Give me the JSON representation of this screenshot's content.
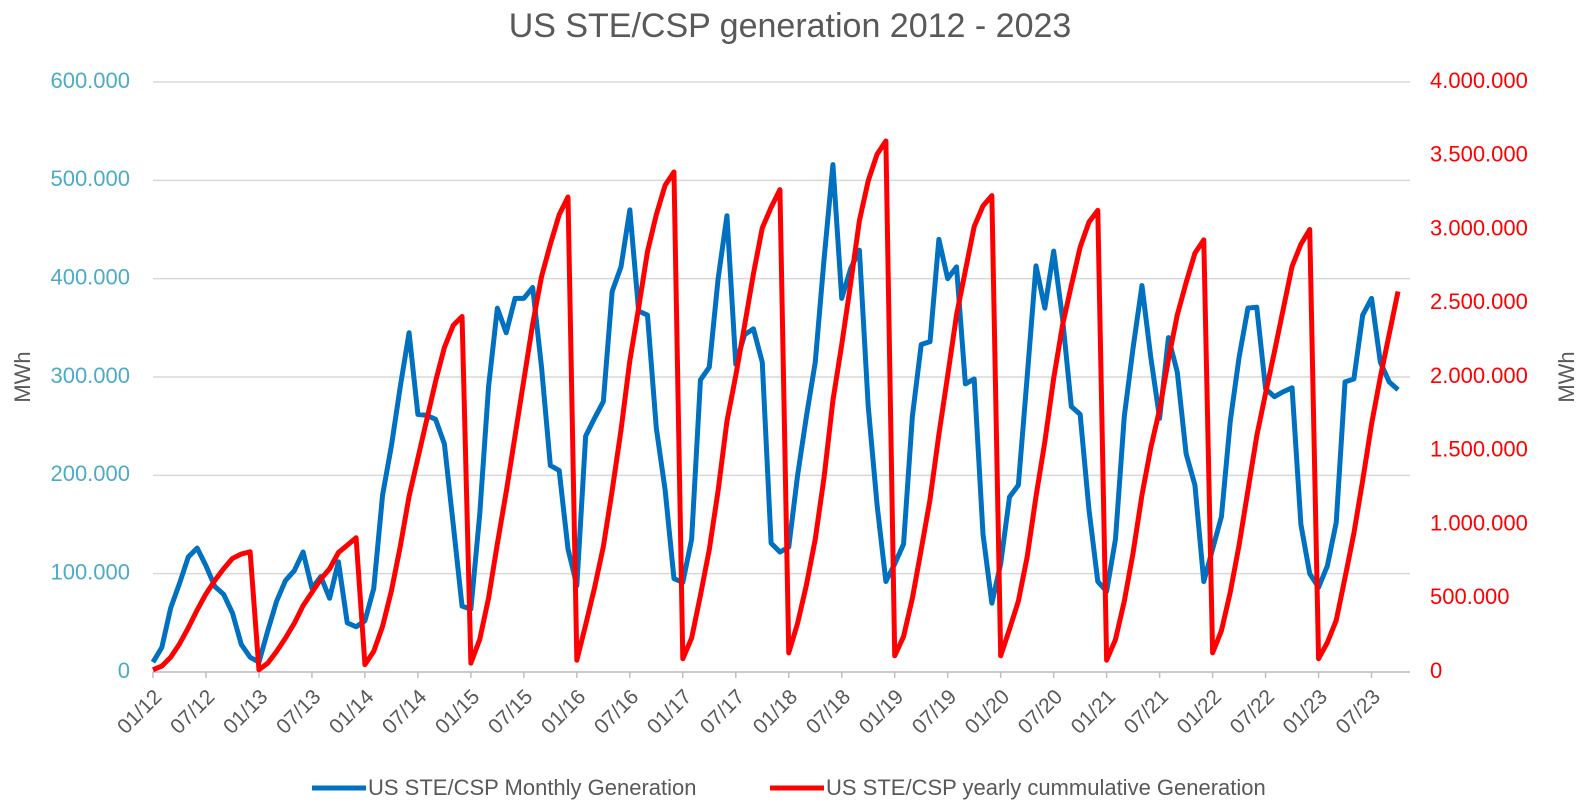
{
  "chart_data": {
    "type": "line",
    "title": "US STE/CSP generation 2012 - 2023",
    "y_label": "MWh",
    "y2_label": "MWh",
    "categories": [
      "01/12",
      null,
      null,
      null,
      null,
      null,
      "07/12",
      null,
      null,
      null,
      null,
      null,
      "01/13",
      null,
      null,
      null,
      null,
      null,
      "07/13",
      null,
      null,
      null,
      null,
      null,
      "01/14",
      null,
      null,
      null,
      null,
      null,
      "07/14",
      null,
      null,
      null,
      null,
      null,
      "01/15",
      null,
      null,
      null,
      null,
      null,
      "07/15",
      null,
      null,
      null,
      null,
      null,
      "01/16",
      null,
      null,
      null,
      null,
      null,
      "07/16",
      null,
      null,
      null,
      null,
      null,
      "01/17",
      null,
      null,
      null,
      null,
      null,
      "07/17",
      null,
      null,
      null,
      null,
      null,
      "01/18",
      null,
      null,
      null,
      null,
      null,
      "07/18",
      null,
      null,
      null,
      null,
      null,
      "01/19",
      null,
      null,
      null,
      null,
      null,
      "07/19",
      null,
      null,
      null,
      null,
      null,
      "01/20",
      null,
      null,
      null,
      null,
      null,
      "07/20",
      null,
      null,
      null,
      null,
      null,
      "01/21",
      null,
      null,
      null,
      null,
      null,
      "07/21",
      null,
      null,
      null,
      null,
      null,
      "01/22",
      null,
      null,
      null,
      null,
      null,
      "07/22",
      null,
      null,
      null,
      null,
      null,
      "01/23",
      null,
      null,
      null,
      null,
      null,
      "07/23",
      null,
      null,
      null
    ],
    "series": [
      {
        "name": "US STE/CSP Monthly Generation",
        "color": "#0070c0",
        "values": [
          10000,
          25000,
          65000,
          90000,
          117000,
          126000,
          108000,
          87000,
          79000,
          60000,
          28000,
          15000,
          10000,
          42000,
          72000,
          93000,
          103000,
          122000,
          85000,
          97000,
          75000,
          112000,
          50000,
          46000,
          52000,
          85000,
          180000,
          230000,
          290000,
          345000,
          262000,
          261000,
          257000,
          232000,
          150000,
          67000,
          64000,
          160000,
          290000,
          370000,
          345000,
          380000,
          380000,
          391000,
          310000,
          210000,
          205000,
          125000,
          88000,
          240000,
          258000,
          275000,
          387000,
          412000,
          470000,
          367000,
          363000,
          248000,
          185000,
          95000,
          91000,
          135000,
          297000,
          310000,
          400000,
          464000,
          313000,
          343000,
          349000,
          315000,
          131000,
          122000,
          127000,
          200000,
          260000,
          315000,
          420000,
          516000,
          380000,
          410000,
          429000,
          270000,
          170000,
          92000,
          110000,
          130000,
          260000,
          333000,
          336000,
          440000,
          400000,
          412000,
          293000,
          298000,
          140000,
          70000,
          110000,
          178000,
          190000,
          300000,
          413000,
          370000,
          428000,
          360000,
          270000,
          262000,
          165000,
          92000,
          82000,
          135000,
          260000,
          330000,
          393000,
          320000,
          258000,
          340000,
          305000,
          222000,
          190000,
          92000,
          125000,
          158000,
          255000,
          320000,
          370000,
          371000,
          288000,
          280000,
          285000,
          289000,
          150000,
          100000,
          86000,
          108000,
          152000,
          295000,
          298000,
          363000,
          380000,
          315000,
          295000,
          287000
        ]
      },
      {
        "name": "US STE/CSP yearly cummulative Generation",
        "color": "#ff0000",
        "axis": "y2",
        "values": [
          15000,
          40000,
          100000,
          190000,
          300000,
          420000,
          530000,
          620000,
          700000,
          770000,
          800000,
          815000,
          15000,
          60000,
          140000,
          230000,
          330000,
          450000,
          540000,
          630000,
          700000,
          810000,
          860000,
          910000,
          50000,
          140000,
          310000,
          550000,
          850000,
          1190000,
          1450000,
          1710000,
          1970000,
          2200000,
          2350000,
          2410000,
          60000,
          220000,
          500000,
          870000,
          1220000,
          1600000,
          1980000,
          2360000,
          2680000,
          2900000,
          3100000,
          3220000,
          80000,
          320000,
          570000,
          850000,
          1230000,
          1640000,
          2110000,
          2470000,
          2850000,
          3100000,
          3300000,
          3390000,
          90000,
          230000,
          520000,
          830000,
          1230000,
          1700000,
          2010000,
          2350000,
          2700000,
          3010000,
          3150000,
          3270000,
          130000,
          330000,
          590000,
          900000,
          1320000,
          1840000,
          2220000,
          2630000,
          3060000,
          3330000,
          3510000,
          3600000,
          110000,
          240000,
          500000,
          830000,
          1170000,
          1610000,
          2010000,
          2420000,
          2720000,
          3020000,
          3160000,
          3230000,
          110000,
          290000,
          480000,
          780000,
          1190000,
          1560000,
          1990000,
          2350000,
          2620000,
          2880000,
          3050000,
          3130000,
          80000,
          220000,
          480000,
          810000,
          1200000,
          1520000,
          1780000,
          2120000,
          2420000,
          2640000,
          2840000,
          2930000,
          130000,
          280000,
          540000,
          860000,
          1230000,
          1600000,
          1890000,
          2170000,
          2460000,
          2750000,
          2900000,
          3000000,
          90000,
          200000,
          350000,
          640000,
          940000,
          1300000,
          1680000,
          2000000,
          2290000,
          2580000
        ]
      }
    ],
    "ylim": [
      0,
      600000
    ],
    "yticks": [
      0,
      {
        "value": 100000,
        "label": "100.000"
      },
      {
        "value": 200000,
        "label": "200.000"
      },
      {
        "value": 300000,
        "label": "300.000"
      },
      {
        "value": 400000,
        "label": "400.000"
      },
      {
        "value": 500000,
        "label": "500.000"
      },
      {
        "value": 600000,
        "label": "600.000"
      }
    ],
    "y2lim": [
      0,
      4000000
    ],
    "y2ticks": [
      0,
      {
        "value": 500000,
        "label": "500.000"
      },
      {
        "value": 1000000,
        "label": "1.000.000"
      },
      {
        "value": 1500000,
        "label": "1.500.000"
      },
      {
        "value": 2000000,
        "label": "2.000.000"
      },
      {
        "value": 2500000,
        "label": "2.500.000"
      },
      {
        "value": 3000000,
        "label": "3.000.000"
      },
      {
        "value": 3500000,
        "label": "3.500.000"
      },
      {
        "value": 4000000,
        "label": "4.000.000"
      }
    ],
    "ytick_color": "#4bacc6",
    "y2tick_color": "#ff0000",
    "grid": true,
    "legend": "bottom"
  }
}
